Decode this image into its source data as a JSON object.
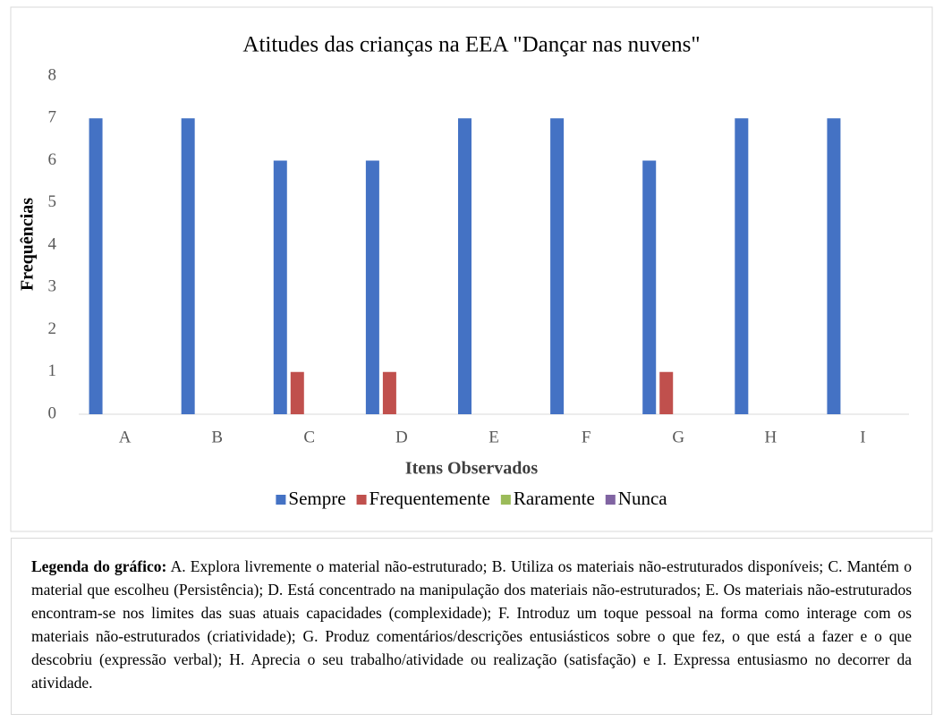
{
  "chart_data": {
    "type": "bar",
    "title": "Atitudes das crianças na EEA \"Dançar nas nuvens\"",
    "x_label": "Itens Observados",
    "y_label": "Frequências",
    "categories": [
      "A",
      "B",
      "C",
      "D",
      "E",
      "F",
      "G",
      "H",
      "I"
    ],
    "series": [
      {
        "name": "Sempre",
        "color": "#4472c4",
        "values": [
          7,
          7,
          6,
          6,
          7,
          7,
          6,
          7,
          7
        ]
      },
      {
        "name": "Frequentemente",
        "color": "#c0504d",
        "values": [
          0,
          0,
          1,
          1,
          0,
          0,
          1,
          0,
          0
        ]
      },
      {
        "name": "Raramente",
        "color": "#9bbb59",
        "values": [
          0,
          0,
          0,
          0,
          0,
          0,
          0,
          0,
          0
        ]
      },
      {
        "name": "Nunca",
        "color": "#8064a2",
        "values": [
          0,
          0,
          0,
          0,
          0,
          0,
          0,
          0,
          0
        ]
      }
    ],
    "ylim": [
      0,
      8
    ],
    "yticks": [
      0,
      1,
      2,
      3,
      4,
      5,
      6,
      7,
      8
    ],
    "grid": false,
    "legend": "bottom"
  },
  "caption": {
    "label": "Legenda do gráfico:",
    "text": "A. Explora livremente o material não-estruturado; B. Utiliza os materiais não-estruturados disponíveis; C. Mantém o material que escolheu (Persistência); D. Está concentrado na manipulação dos materiais não-estruturados; E. Os materiais não-estruturados encontram-se nos limites das suas atuais capacidades (complexidade); F. Introduz um toque pessoal na forma como interage com os materiais não-estruturados (criatividade); G. Produz comentários/descrições entusiásticos sobre o que fez, o que está a fazer e o que descobriu (expressão verbal); H. Aprecia o seu trabalho/atividade ou realização (satisfação) e I. Expressa entusiasmo no decorrer da atividade."
  }
}
